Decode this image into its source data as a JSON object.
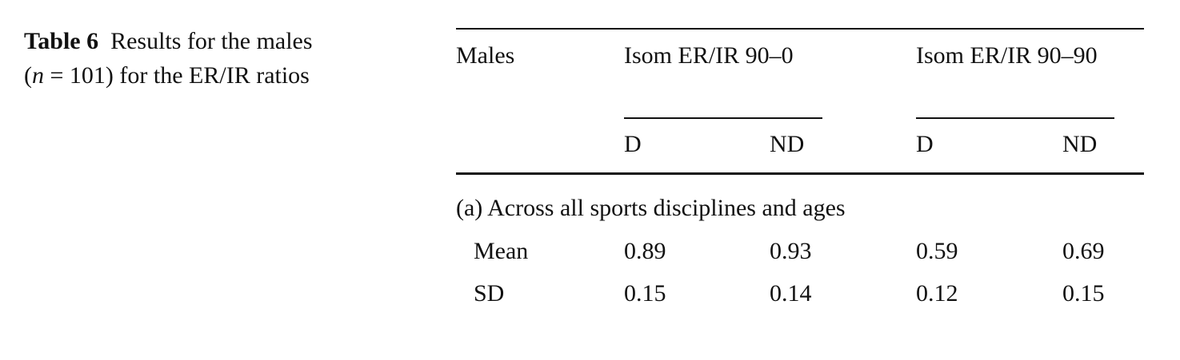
{
  "caption": {
    "label": "Table 6",
    "line1": "Results for the males",
    "line2_open": "(",
    "line2_var": "n",
    "line2_rest": " = 101) for the ER/IR ratios"
  },
  "table": {
    "row_header": "Males",
    "groups": [
      "Isom ER/IR 90–0",
      "Isom ER/IR 90–90"
    ],
    "subheaders": [
      "D",
      "ND",
      "D",
      "ND"
    ],
    "section": "(a) Across all sports disciplines and ages",
    "rows": [
      {
        "label": "Mean",
        "values": [
          "0.89",
          "0.93",
          "0.59",
          "0.69"
        ]
      },
      {
        "label": "SD",
        "values": [
          "0.15",
          "0.14",
          "0.12",
          "0.15"
        ]
      }
    ]
  }
}
